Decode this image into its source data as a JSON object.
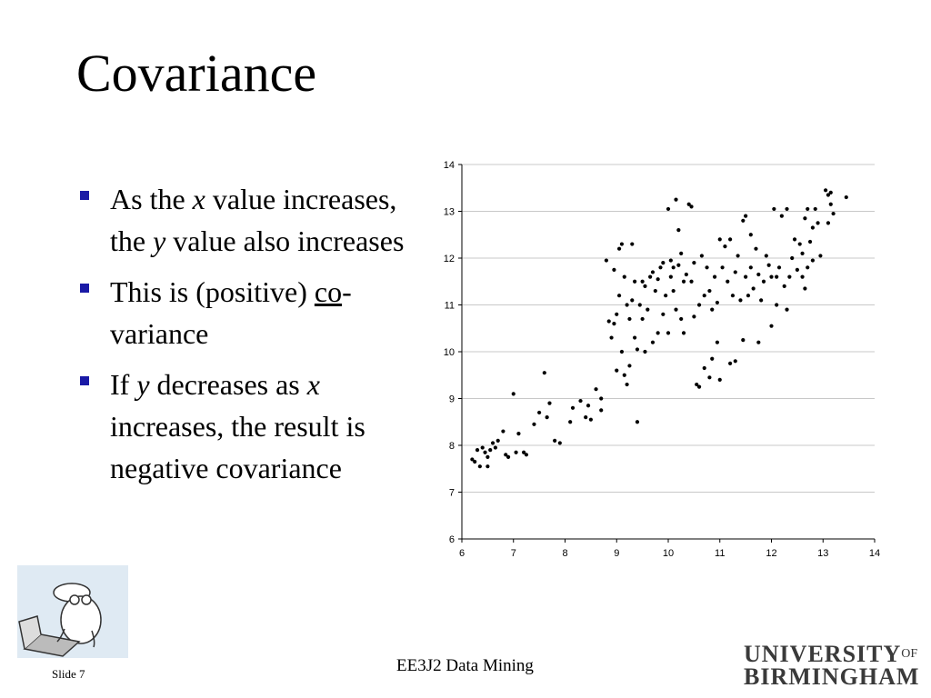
{
  "slide": {
    "title": "Covariance",
    "bullets": [
      {
        "parts": [
          "As the ",
          "x",
          " value increases, the ",
          "y",
          " value also increases"
        ]
      },
      {
        "parts": [
          "This is (positive) ",
          "co",
          "-variance"
        ]
      },
      {
        "parts": [
          "If ",
          "y",
          " decreases as ",
          "x",
          " increases, the result is negative covariance"
        ]
      }
    ],
    "footer_center": "EE3J2 Data Mining",
    "slide_number": "Slide 7",
    "logo": {
      "line1": "UNIVERSITY",
      "of": "OF",
      "line2": "BIRMINGHAM"
    },
    "bullet_color": "#1a1aa6"
  },
  "clipart": {
    "icon": "person-at-laptop-cartoon-icon"
  },
  "chart_data": {
    "type": "scatter",
    "title": "",
    "xlabel": "",
    "ylabel": "",
    "xlim": [
      6,
      14
    ],
    "ylim": [
      6,
      14
    ],
    "xticks": [
      6,
      7,
      8,
      9,
      10,
      11,
      12,
      13,
      14
    ],
    "yticks": [
      6,
      7,
      8,
      9,
      10,
      11,
      12,
      13,
      14
    ],
    "grid": "horizontal",
    "legend": "none",
    "marker_color": "#000000",
    "points": [
      [
        6.2,
        7.7
      ],
      [
        6.25,
        7.65
      ],
      [
        6.3,
        7.9
      ],
      [
        6.35,
        7.55
      ],
      [
        6.4,
        7.95
      ],
      [
        6.45,
        7.85
      ],
      [
        6.5,
        7.75
      ],
      [
        6.5,
        7.55
      ],
      [
        6.55,
        7.9
      ],
      [
        6.6,
        8.05
      ],
      [
        6.65,
        7.95
      ],
      [
        6.7,
        8.1
      ],
      [
        6.8,
        8.3
      ],
      [
        6.85,
        7.8
      ],
      [
        6.9,
        7.75
      ],
      [
        7.0,
        9.1
      ],
      [
        7.05,
        7.85
      ],
      [
        7.1,
        8.25
      ],
      [
        7.2,
        7.85
      ],
      [
        7.25,
        7.8
      ],
      [
        7.4,
        8.45
      ],
      [
        7.5,
        8.7
      ],
      [
        7.6,
        9.55
      ],
      [
        7.65,
        8.6
      ],
      [
        7.7,
        8.9
      ],
      [
        7.8,
        8.1
      ],
      [
        7.9,
        8.05
      ],
      [
        8.1,
        8.5
      ],
      [
        8.15,
        8.8
      ],
      [
        8.3,
        8.95
      ],
      [
        8.4,
        8.6
      ],
      [
        8.45,
        8.85
      ],
      [
        8.5,
        8.55
      ],
      [
        8.6,
        9.2
      ],
      [
        8.7,
        8.75
      ],
      [
        8.7,
        9.0
      ],
      [
        8.8,
        11.95
      ],
      [
        8.85,
        10.65
      ],
      [
        8.9,
        10.3
      ],
      [
        8.95,
        11.75
      ],
      [
        8.95,
        10.6
      ],
      [
        9.0,
        9.6
      ],
      [
        9.0,
        10.8
      ],
      [
        9.05,
        11.2
      ],
      [
        9.05,
        12.2
      ],
      [
        9.1,
        12.3
      ],
      [
        9.1,
        10.0
      ],
      [
        9.15,
        11.6
      ],
      [
        9.15,
        9.5
      ],
      [
        9.2,
        11.0
      ],
      [
        9.2,
        9.3
      ],
      [
        9.25,
        10.7
      ],
      [
        9.25,
        9.7
      ],
      [
        9.3,
        12.3
      ],
      [
        9.3,
        11.1
      ],
      [
        9.35,
        11.5
      ],
      [
        9.35,
        10.3
      ],
      [
        9.4,
        10.05
      ],
      [
        9.4,
        8.5
      ],
      [
        9.45,
        11.0
      ],
      [
        9.5,
        10.7
      ],
      [
        9.5,
        11.5
      ],
      [
        9.55,
        11.4
      ],
      [
        9.55,
        10.0
      ],
      [
        9.6,
        10.9
      ],
      [
        9.65,
        11.6
      ],
      [
        9.7,
        10.2
      ],
      [
        9.7,
        11.7
      ],
      [
        9.75,
        11.3
      ],
      [
        9.8,
        11.55
      ],
      [
        9.8,
        10.4
      ],
      [
        9.85,
        11.8
      ],
      [
        9.9,
        10.8
      ],
      [
        9.9,
        11.9
      ],
      [
        9.95,
        11.2
      ],
      [
        10.0,
        13.05
      ],
      [
        10.0,
        10.4
      ],
      [
        10.05,
        11.95
      ],
      [
        10.05,
        11.6
      ],
      [
        10.1,
        11.8
      ],
      [
        10.1,
        11.3
      ],
      [
        10.15,
        13.25
      ],
      [
        10.15,
        10.9
      ],
      [
        10.2,
        11.85
      ],
      [
        10.2,
        12.6
      ],
      [
        10.25,
        12.1
      ],
      [
        10.25,
        10.7
      ],
      [
        10.3,
        11.5
      ],
      [
        10.3,
        10.4
      ],
      [
        10.35,
        11.65
      ],
      [
        10.4,
        13.15
      ],
      [
        10.45,
        13.1
      ],
      [
        10.45,
        11.5
      ],
      [
        10.5,
        10.75
      ],
      [
        10.5,
        11.9
      ],
      [
        10.55,
        9.3
      ],
      [
        10.6,
        9.25
      ],
      [
        10.6,
        11.0
      ],
      [
        10.65,
        12.05
      ],
      [
        10.7,
        9.65
      ],
      [
        10.7,
        11.2
      ],
      [
        10.75,
        11.8
      ],
      [
        10.8,
        9.45
      ],
      [
        10.8,
        11.3
      ],
      [
        10.85,
        9.85
      ],
      [
        10.85,
        10.9
      ],
      [
        10.9,
        11.6
      ],
      [
        10.95,
        10.2
      ],
      [
        10.95,
        11.05
      ],
      [
        11.0,
        9.4
      ],
      [
        11.0,
        12.4
      ],
      [
        11.05,
        11.8
      ],
      [
        11.1,
        12.25
      ],
      [
        11.15,
        11.5
      ],
      [
        11.2,
        9.75
      ],
      [
        11.2,
        12.4
      ],
      [
        11.25,
        11.2
      ],
      [
        11.3,
        9.8
      ],
      [
        11.3,
        11.7
      ],
      [
        11.35,
        12.05
      ],
      [
        11.4,
        11.1
      ],
      [
        11.45,
        12.8
      ],
      [
        11.45,
        10.25
      ],
      [
        11.5,
        11.6
      ],
      [
        11.5,
        12.9
      ],
      [
        11.55,
        11.2
      ],
      [
        11.6,
        11.8
      ],
      [
        11.6,
        12.5
      ],
      [
        11.65,
        11.35
      ],
      [
        11.7,
        12.2
      ],
      [
        11.75,
        10.2
      ],
      [
        11.75,
        11.65
      ],
      [
        11.8,
        11.1
      ],
      [
        11.85,
        11.5
      ],
      [
        11.9,
        12.05
      ],
      [
        11.95,
        11.85
      ],
      [
        12.0,
        11.6
      ],
      [
        12.0,
        10.55
      ],
      [
        12.05,
        13.05
      ],
      [
        12.1,
        11.0
      ],
      [
        12.1,
        11.6
      ],
      [
        12.15,
        11.8
      ],
      [
        12.2,
        12.9
      ],
      [
        12.25,
        11.4
      ],
      [
        12.3,
        13.05
      ],
      [
        12.3,
        10.9
      ],
      [
        12.35,
        11.6
      ],
      [
        12.4,
        12.0
      ],
      [
        12.45,
        12.4
      ],
      [
        12.5,
        11.75
      ],
      [
        12.55,
        12.3
      ],
      [
        12.6,
        11.6
      ],
      [
        12.6,
        12.1
      ],
      [
        12.65,
        12.85
      ],
      [
        12.65,
        11.35
      ],
      [
        12.7,
        13.05
      ],
      [
        12.7,
        11.8
      ],
      [
        12.75,
        12.35
      ],
      [
        12.8,
        12.65
      ],
      [
        12.8,
        11.95
      ],
      [
        12.85,
        13.05
      ],
      [
        12.9,
        12.75
      ],
      [
        12.95,
        12.05
      ],
      [
        13.05,
        13.45
      ],
      [
        13.1,
        13.35
      ],
      [
        13.1,
        12.75
      ],
      [
        13.15,
        13.15
      ],
      [
        13.2,
        12.95
      ],
      [
        13.45,
        13.3
      ],
      [
        13.15,
        13.4
      ]
    ]
  }
}
